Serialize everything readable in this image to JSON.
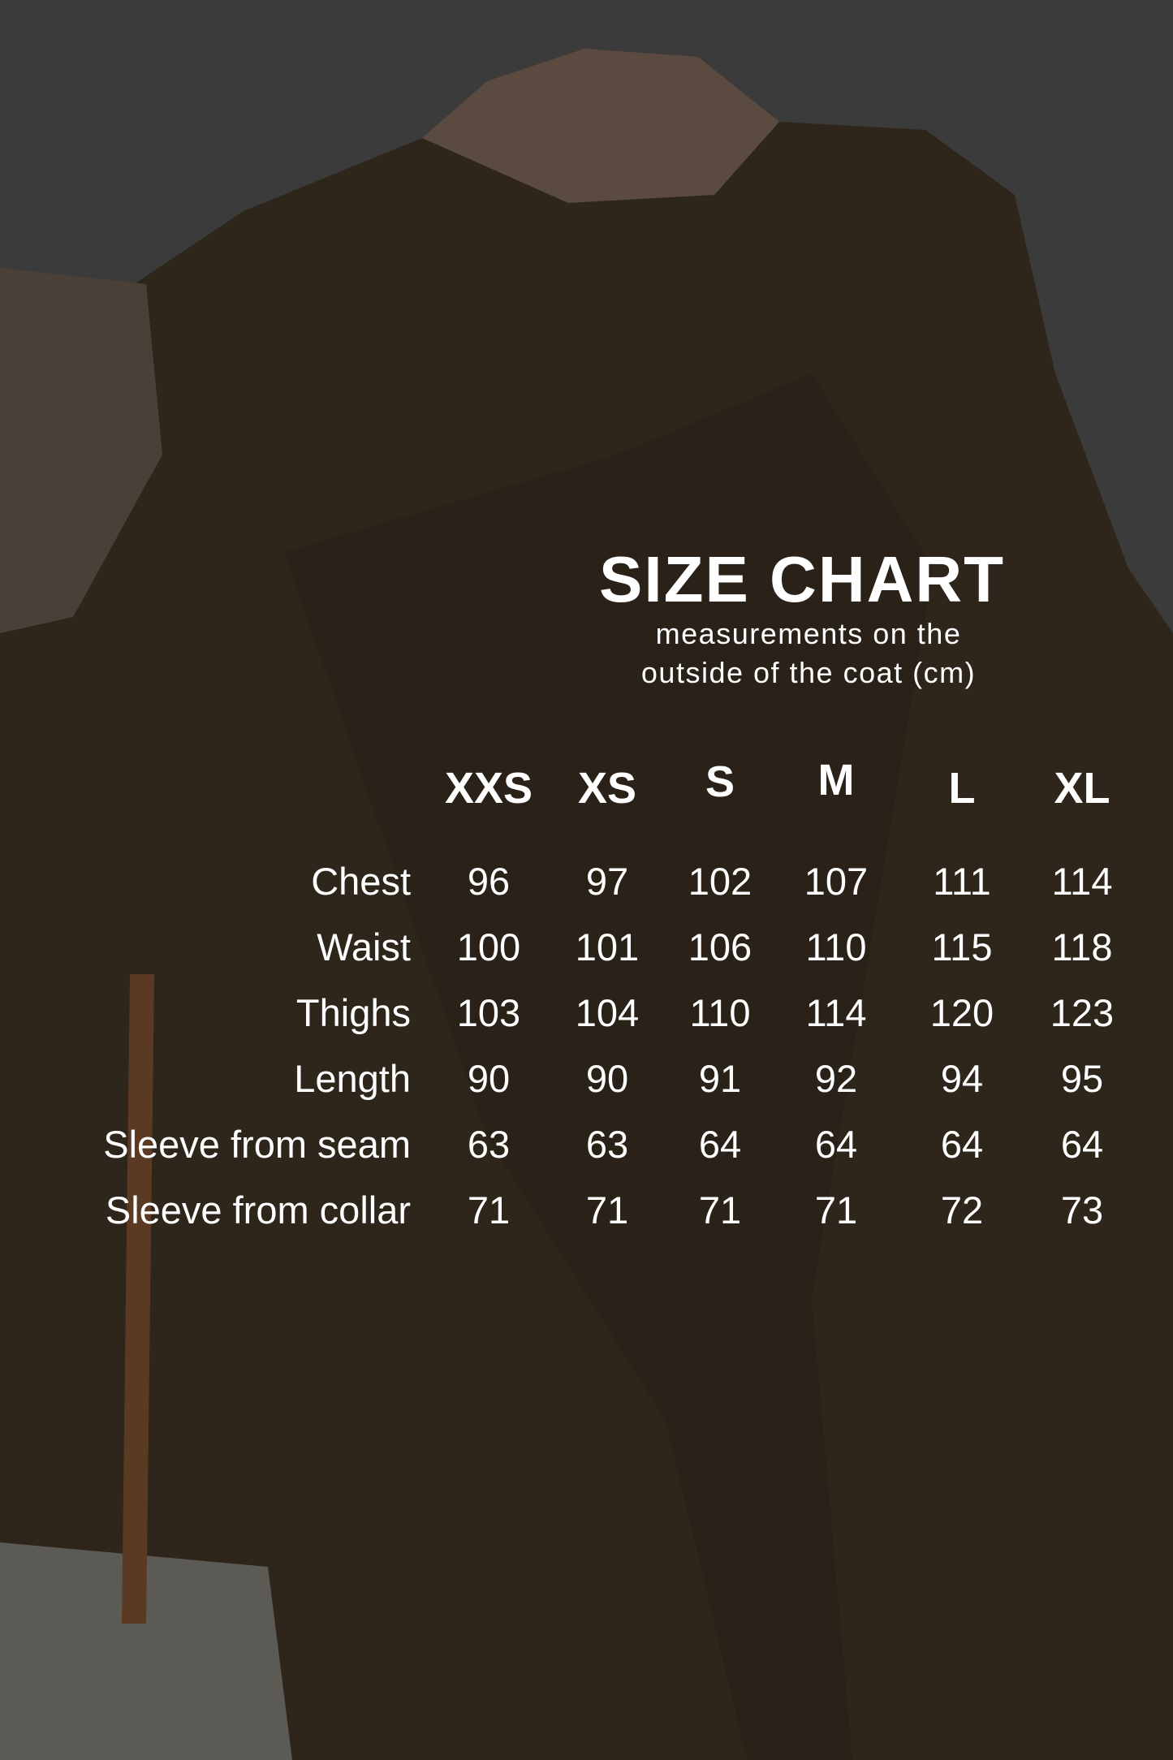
{
  "title": "SIZE CHART",
  "subtitle": [
    "measurements on the",
    "outside of the coat (cm)"
  ],
  "colors": {
    "text": "#ffffff",
    "background_top": "#3b3b3b",
    "coat": "#2f261b"
  },
  "chart_data": {
    "type": "table",
    "title": "SIZE CHART",
    "columns": [
      "XXS",
      "XS",
      "S",
      "M",
      "L",
      "XL"
    ],
    "rows": [
      {
        "label": "Chest",
        "values": [
          96,
          97,
          102,
          107,
          111,
          114
        ]
      },
      {
        "label": "Waist",
        "values": [
          100,
          101,
          106,
          110,
          115,
          118
        ]
      },
      {
        "label": "Thighs",
        "values": [
          103,
          104,
          110,
          114,
          120,
          123
        ]
      },
      {
        "label": "Length",
        "values": [
          90,
          90,
          91,
          92,
          94,
          95
        ]
      },
      {
        "label": "Sleeve from seam",
        "values": [
          63,
          63,
          64,
          64,
          64,
          64
        ]
      },
      {
        "label": "Sleeve from collar",
        "values": [
          71,
          71,
          71,
          71,
          72,
          73
        ]
      }
    ]
  }
}
